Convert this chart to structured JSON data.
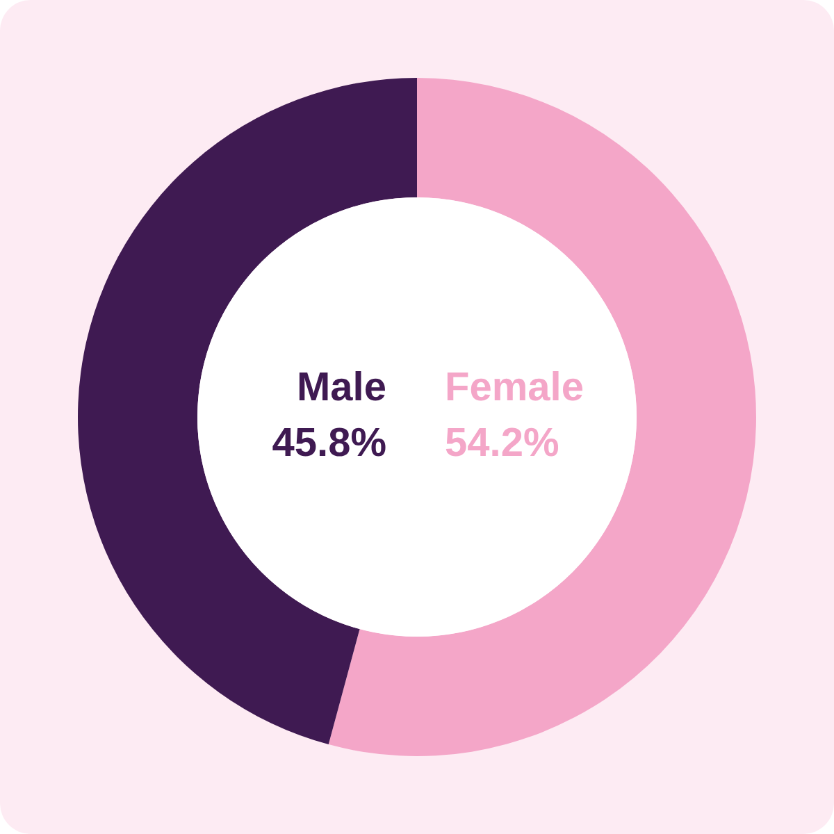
{
  "chart_data": {
    "type": "donut",
    "categories": [
      "Female",
      "Male"
    ],
    "values": [
      54.2,
      45.8
    ],
    "colors": [
      "#f4a6c8",
      "#3f1a52"
    ],
    "value_labels": [
      "54.2%",
      "45.8%"
    ]
  }
}
